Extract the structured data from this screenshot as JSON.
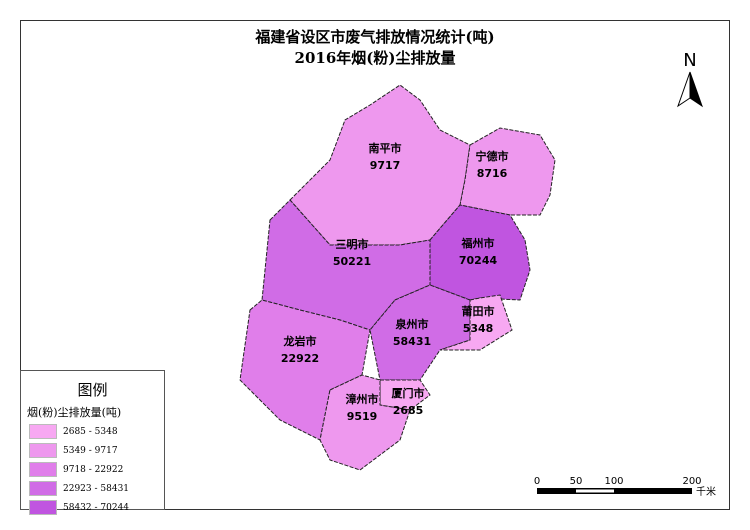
{
  "title_line1": "福建省设区市废气排放情况统计(吨)",
  "title_line2": "2016年烟(粉)尘排放量",
  "north_label": "N",
  "legend": {
    "title": "图例",
    "subtitle": "烟(粉)尘排放量(吨)",
    "classes": [
      {
        "label": "2685 - 5348",
        "color": "#f7a8f2"
      },
      {
        "label": "5349 - 9717",
        "color": "#ee98ee"
      },
      {
        "label": "9718 - 22922",
        "color": "#e07eea"
      },
      {
        "label": "22923 - 58431",
        "color": "#d06ce6"
      },
      {
        "label": "58432 - 70244",
        "color": "#c055e0"
      }
    ]
  },
  "regions": [
    {
      "name": "南平市",
      "value": "9717",
      "class": 1
    },
    {
      "name": "宁德市",
      "value": "8716",
      "class": 1
    },
    {
      "name": "福州市",
      "value": "70244",
      "class": 4
    },
    {
      "name": "三明市",
      "value": "50221",
      "class": 3
    },
    {
      "name": "龙岩市",
      "value": "22922",
      "class": 2
    },
    {
      "name": "泉州市",
      "value": "58431",
      "class": 3
    },
    {
      "name": "莆田市",
      "value": "5348",
      "class": 0
    },
    {
      "name": "厦门市",
      "value": "2685",
      "class": 0
    },
    {
      "name": "漳州市",
      "value": "9519",
      "class": 1
    }
  ],
  "scalebar": {
    "ticks": [
      "0",
      "50",
      "100",
      "200"
    ],
    "unit": "千米"
  }
}
